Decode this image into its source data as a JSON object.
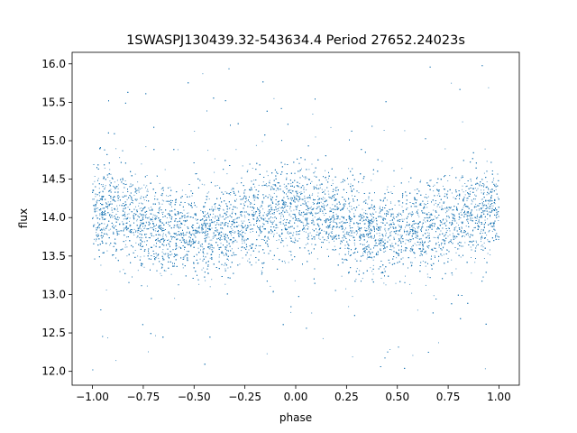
{
  "chart_data": {
    "type": "scatter",
    "title": "1SWASPJ130439.32-543634.4 Period 27652.24023s",
    "xlabel": "phase",
    "ylabel": "flux",
    "xlim": [
      -1.1,
      1.1
    ],
    "ylim": [
      11.82,
      16.15
    ],
    "xticks": [
      -1.0,
      -0.75,
      -0.5,
      -0.25,
      0.0,
      0.25,
      0.5,
      0.75,
      1.0
    ],
    "xtick_labels": [
      "−1.00",
      "−0.75",
      "−0.50",
      "−0.25",
      "0.00",
      "0.25",
      "0.50",
      "0.75",
      "1.00"
    ],
    "yticks": [
      12.0,
      12.5,
      13.0,
      13.5,
      14.0,
      14.5,
      15.0,
      15.5,
      16.0
    ],
    "ytick_labels": [
      "12.0",
      "12.5",
      "13.0",
      "13.5",
      "14.0",
      "14.5",
      "15.0",
      "15.5",
      "16.0"
    ],
    "grid": false,
    "point_color": "#1f77b4",
    "series": [
      {
        "phase_range": [
          -1.0,
          1.0
        ],
        "mean_flux": 13.95,
        "modulation_amplitude": 0.15,
        "flux_maxima_phase": [
          -1.0,
          0.0,
          1.0
        ],
        "flux_minima_phase": [
          -0.5,
          0.5
        ],
        "core_scatter_sigma": 0.28,
        "flux_extent": [
          12.0,
          16.0
        ]
      }
    ],
    "sample_points": [
      {
        "x": -1.0,
        "y": 14.1
      },
      {
        "x": -0.75,
        "y": 13.95
      },
      {
        "x": -0.5,
        "y": 13.8
      },
      {
        "x": -0.25,
        "y": 13.95
      },
      {
        "x": 0.0,
        "y": 14.1
      },
      {
        "x": 0.25,
        "y": 13.95
      },
      {
        "x": 0.5,
        "y": 13.8
      },
      {
        "x": 0.75,
        "y": 13.95
      },
      {
        "x": 1.0,
        "y": 14.1
      }
    ]
  }
}
